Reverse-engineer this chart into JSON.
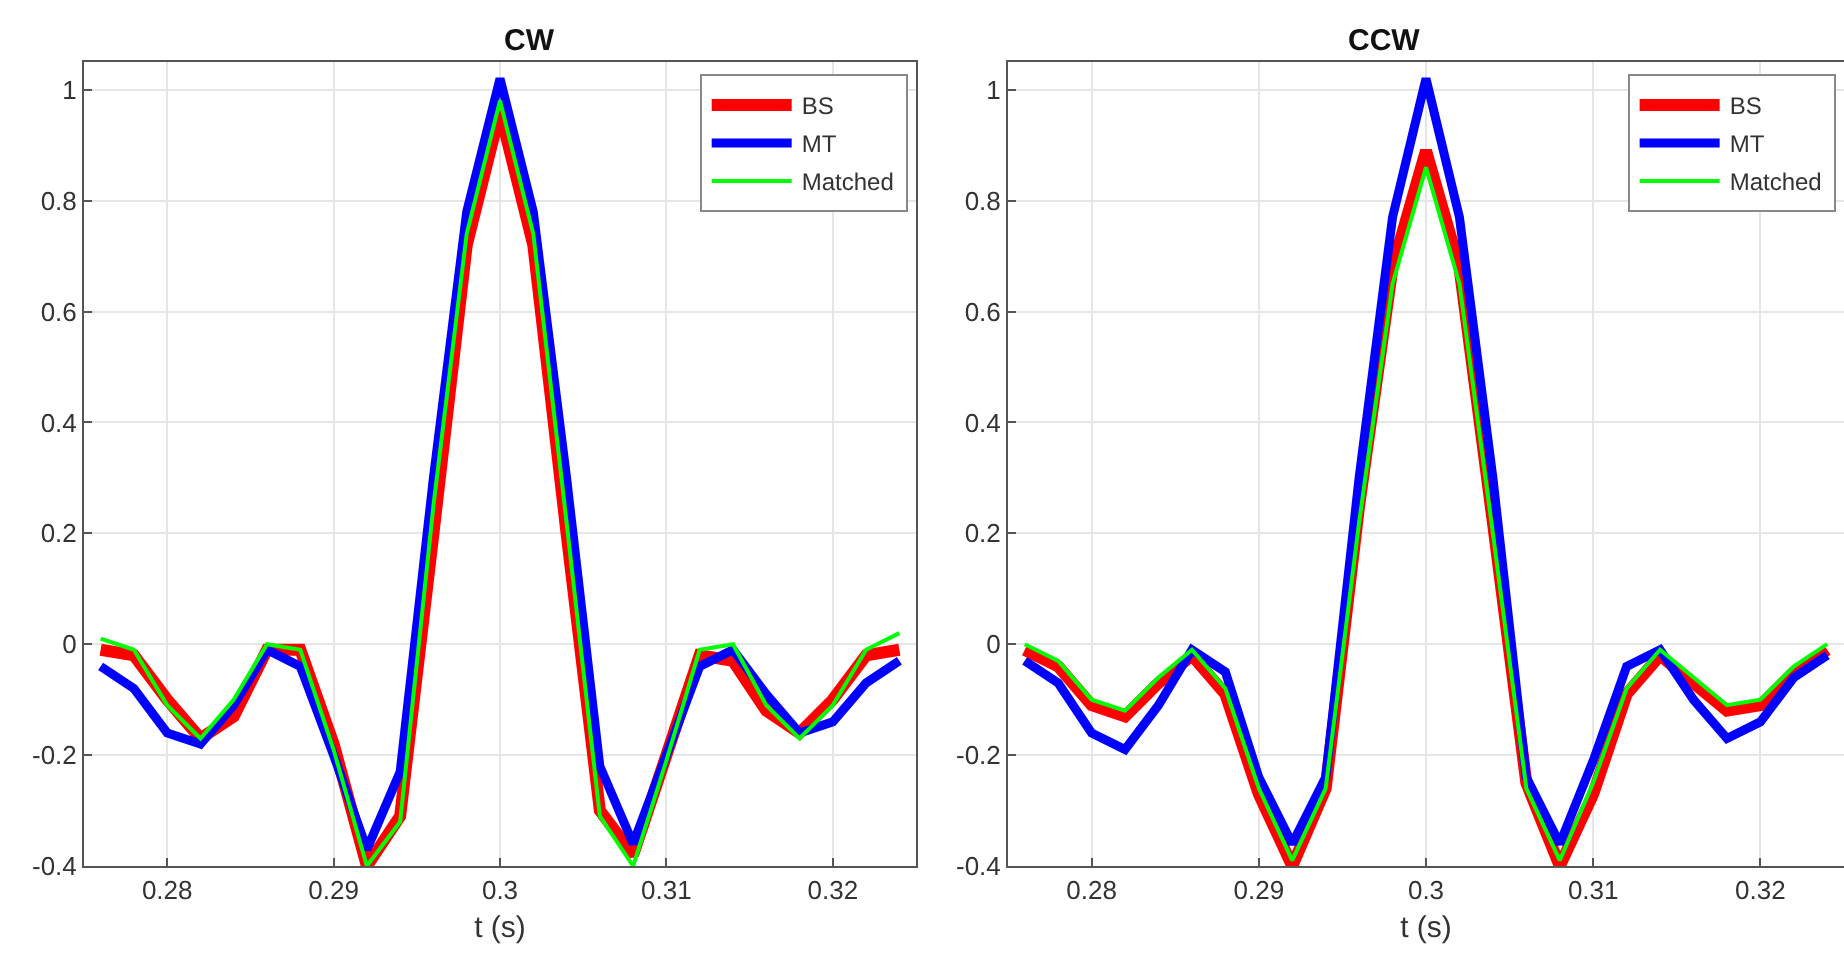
{
  "chart_data": [
    {
      "type": "line",
      "title": "CW",
      "xlabel": "t (s)",
      "x": [
        0.276,
        0.278,
        0.28,
        0.282,
        0.284,
        0.286,
        0.288,
        0.29,
        0.292,
        0.294,
        0.296,
        0.298,
        0.3,
        0.302,
        0.304,
        0.306,
        0.308,
        0.31,
        0.312,
        0.314,
        0.316,
        0.318,
        0.32,
        0.322,
        0.324
      ],
      "series": [
        {
          "name": "BS",
          "color": "#ff0000",
          "values": [
            -0.01,
            -0.02,
            -0.1,
            -0.17,
            -0.13,
            -0.01,
            -0.01,
            -0.18,
            -0.4,
            -0.31,
            0.2,
            0.72,
            0.96,
            0.72,
            0.2,
            -0.3,
            -0.38,
            -0.2,
            -0.02,
            -0.03,
            -0.12,
            -0.16,
            -0.1,
            -0.02,
            -0.01
          ]
        },
        {
          "name": "MT",
          "color": "#0000ff",
          "values": [
            -0.04,
            -0.08,
            -0.16,
            -0.18,
            -0.11,
            -0.01,
            -0.04,
            -0.2,
            -0.37,
            -0.23,
            0.3,
            0.78,
            1.02,
            0.78,
            0.3,
            -0.22,
            -0.36,
            -0.2,
            -0.04,
            -0.01,
            -0.09,
            -0.16,
            -0.14,
            -0.07,
            -0.03
          ]
        },
        {
          "name": "Matched",
          "color": "#00ff00",
          "values": [
            0.01,
            -0.01,
            -0.11,
            -0.17,
            -0.1,
            0.0,
            -0.01,
            -0.19,
            -0.4,
            -0.32,
            0.25,
            0.74,
            0.98,
            0.74,
            0.22,
            -0.31,
            -0.4,
            -0.21,
            -0.01,
            0.0,
            -0.11,
            -0.17,
            -0.11,
            -0.01,
            0.02
          ]
        }
      ],
      "xlim": [
        0.275,
        0.325
      ],
      "xticks": [
        0.28,
        0.29,
        0.3,
        0.31,
        0.32
      ],
      "ylim": [
        -0.4,
        1.05
      ],
      "yticks": [
        -0.4,
        -0.2,
        0,
        0.2,
        0.4,
        0.6,
        0.8,
        1
      ],
      "grid": true,
      "legend": "top right"
    },
    {
      "type": "line",
      "title": "CCW",
      "xlabel": "t (s)",
      "x": [
        0.276,
        0.278,
        0.28,
        0.282,
        0.284,
        0.286,
        0.288,
        0.29,
        0.292,
        0.294,
        0.296,
        0.298,
        0.3,
        0.302,
        0.304,
        0.306,
        0.308,
        0.31,
        0.312,
        0.314,
        0.316,
        0.318,
        0.32,
        0.322,
        0.324
      ],
      "series": [
        {
          "name": "BS",
          "color": "#ff0000",
          "values": [
            -0.01,
            -0.04,
            -0.11,
            -0.13,
            -0.07,
            -0.02,
            -0.09,
            -0.27,
            -0.4,
            -0.26,
            0.25,
            0.68,
            0.89,
            0.68,
            0.22,
            -0.25,
            -0.4,
            -0.27,
            -0.09,
            -0.02,
            -0.07,
            -0.12,
            -0.11,
            -0.05,
            -0.01
          ]
        },
        {
          "name": "MT",
          "color": "#0000ff",
          "values": [
            -0.03,
            -0.07,
            -0.16,
            -0.19,
            -0.11,
            -0.01,
            -0.05,
            -0.24,
            -0.36,
            -0.24,
            0.3,
            0.77,
            1.02,
            0.77,
            0.3,
            -0.24,
            -0.36,
            -0.21,
            -0.04,
            -0.01,
            -0.1,
            -0.17,
            -0.14,
            -0.06,
            -0.02
          ]
        },
        {
          "name": "Matched",
          "color": "#00ff00",
          "values": [
            0.0,
            -0.03,
            -0.1,
            -0.12,
            -0.06,
            -0.01,
            -0.08,
            -0.26,
            -0.39,
            -0.26,
            0.22,
            0.65,
            0.86,
            0.65,
            0.2,
            -0.26,
            -0.39,
            -0.25,
            -0.08,
            -0.01,
            -0.06,
            -0.11,
            -0.1,
            -0.04,
            0.0
          ]
        }
      ],
      "xlim": [
        0.275,
        0.325
      ],
      "xticks": [
        0.28,
        0.29,
        0.3,
        0.31,
        0.32
      ],
      "ylim": [
        -0.4,
        1.05
      ],
      "yticks": [
        -0.4,
        -0.2,
        0,
        0.2,
        0.4,
        0.6,
        0.8,
        1
      ],
      "grid": true,
      "legend": "top right"
    }
  ]
}
